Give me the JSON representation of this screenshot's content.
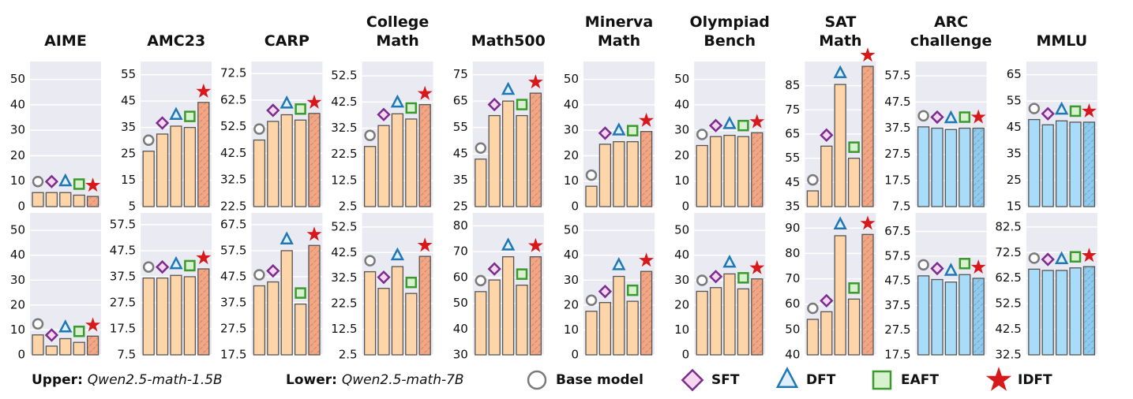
{
  "chart_data": [
    {
      "type": "bar",
      "title": "AIME",
      "values": [
        5.5,
        5.5,
        5.5,
        4.5,
        4
      ],
      "ylim": [
        0,
        57
      ],
      "yticks": [
        0,
        10,
        20,
        30,
        40,
        50
      ],
      "color": "#fdd5a8",
      "highlight_color": "#f4a582"
    },
    {
      "type": "bar",
      "title": "AMC23",
      "values": [
        26,
        32.5,
        35.5,
        35,
        44.5
      ],
      "ylim": [
        5,
        60
      ],
      "yticks": [
        5,
        15,
        25,
        35,
        45,
        55
      ],
      "color": "#fdd5a8",
      "highlight_color": "#f4a582"
    },
    {
      "type": "bar",
      "title": "CARP",
      "values": [
        47.5,
        54.5,
        57,
        55,
        57.5
      ],
      "ylim": [
        22.5,
        77
      ],
      "yticks": [
        22.5,
        32.5,
        42.5,
        52.5,
        62.5,
        72.5
      ],
      "color": "#fdd5a8",
      "highlight_color": "#f4a582"
    },
    {
      "type": "bar",
      "title": "College Math",
      "values": [
        25.5,
        33.5,
        38,
        36,
        41.5
      ],
      "ylim": [
        2.5,
        58
      ],
      "yticks": [
        2.5,
        12.5,
        22.5,
        32.5,
        42.5,
        52.5
      ],
      "color": "#fdd5a8",
      "highlight_color": "#f4a582"
    },
    {
      "type": "bar",
      "title": "Math500",
      "values": [
        43,
        59.5,
        65,
        59.5,
        68
      ],
      "ylim": [
        25,
        80
      ],
      "yticks": [
        25,
        35,
        45,
        55,
        65,
        75
      ],
      "color": "#fdd5a8",
      "highlight_color": "#f4a582"
    },
    {
      "type": "bar",
      "title": "Minerva Math",
      "values": [
        8,
        24.5,
        25.5,
        25.5,
        29.5
      ],
      "ylim": [
        0,
        57
      ],
      "yticks": [
        0,
        10,
        20,
        30,
        40,
        50
      ],
      "color": "#fdd5a8",
      "highlight_color": "#f4a582"
    },
    {
      "type": "bar",
      "title": "Olympiad Bench",
      "values": [
        24,
        27.5,
        28,
        27.5,
        29
      ],
      "ylim": [
        0,
        57
      ],
      "yticks": [
        0,
        10,
        20,
        30,
        40,
        50
      ],
      "color": "#fdd5a8",
      "highlight_color": "#f4a582"
    },
    {
      "type": "bar",
      "title": "SAT Math",
      "values": [
        41.5,
        60,
        85.5,
        55,
        93
      ],
      "ylim": [
        35,
        95
      ],
      "yticks": [
        35,
        45,
        55,
        65,
        75,
        85
      ],
      "color": "#fdd5a8",
      "highlight_color": "#f4a582"
    },
    {
      "type": "bar",
      "title": "ARC challenge",
      "values": [
        38,
        37.5,
        37,
        37.5,
        37.5
      ],
      "ylim": [
        7.5,
        63
      ],
      "yticks": [
        7.5,
        17.5,
        27.5,
        37.5,
        47.5,
        57.5
      ],
      "color": "#a8dcf8",
      "highlight_color": "#8ecbf0"
    },
    {
      "type": "bar",
      "title": "MMLU",
      "values": [
        48,
        46,
        47.5,
        47,
        47
      ],
      "ylim": [
        15,
        70
      ],
      "yticks": [
        15,
        25,
        35,
        45,
        55,
        65
      ],
      "color": "#a8dcf8",
      "highlight_color": "#8ecbf0"
    },
    {
      "type": "bar",
      "values": [
        8,
        3.5,
        6.5,
        5,
        7.5
      ],
      "ylim": [
        0,
        57
      ],
      "yticks": [
        0,
        10,
        20,
        30,
        40,
        50
      ],
      "color": "#fdd5a8",
      "highlight_color": "#f4a582"
    },
    {
      "type": "bar",
      "values": [
        37,
        37,
        38,
        37.5,
        40.5
      ],
      "ylim": [
        7.5,
        62
      ],
      "yticks": [
        7.5,
        17.5,
        27.5,
        37.5,
        47.5,
        57.5
      ],
      "color": "#fdd5a8",
      "highlight_color": "#f4a582"
    },
    {
      "type": "bar",
      "values": [
        44,
        45.5,
        57.5,
        37,
        59.5
      ],
      "ylim": [
        17.5,
        72
      ],
      "yticks": [
        17.5,
        27.5,
        37.5,
        47.5,
        57.5,
        67.5
      ],
      "color": "#fdd5a8",
      "highlight_color": "#f4a582"
    },
    {
      "type": "bar",
      "values": [
        35,
        28.5,
        37,
        26.5,
        41
      ],
      "ylim": [
        2.5,
        58
      ],
      "yticks": [
        2.5,
        12.5,
        22.5,
        32.5,
        42.5,
        52.5
      ],
      "color": "#fdd5a8",
      "highlight_color": "#f4a582"
    },
    {
      "type": "bar",
      "values": [
        54.5,
        59,
        68,
        57,
        68
      ],
      "ylim": [
        30,
        85
      ],
      "yticks": [
        30,
        40,
        50,
        60,
        70,
        80
      ],
      "color": "#fdd5a8",
      "highlight_color": "#f4a582"
    },
    {
      "type": "bar",
      "values": [
        17.5,
        21,
        31.5,
        21.5,
        33.5
      ],
      "ylim": [
        0,
        57
      ],
      "yticks": [
        0,
        10,
        20,
        30,
        40,
        50
      ],
      "color": "#fdd5a8",
      "highlight_color": "#f4a582"
    },
    {
      "type": "bar",
      "values": [
        25.5,
        27,
        32.5,
        26.5,
        30.5
      ],
      "ylim": [
        0,
        57
      ],
      "yticks": [
        0,
        10,
        20,
        30,
        40,
        50
      ],
      "color": "#fdd5a8",
      "highlight_color": "#f4a582"
    },
    {
      "type": "bar",
      "values": [
        54,
        57,
        87,
        62,
        87.5
      ],
      "ylim": [
        40,
        96
      ],
      "yticks": [
        40,
        50,
        60,
        70,
        80,
        90
      ],
      "color": "#fdd5a8",
      "highlight_color": "#f4a582"
    },
    {
      "type": "bar",
      "values": [
        49.5,
        48,
        47,
        50,
        48.5
      ],
      "ylim": [
        17.5,
        75
      ],
      "yticks": [
        17.5,
        27.5,
        37.5,
        47.5,
        57.5,
        67.5
      ],
      "color": "#a8dcf8",
      "highlight_color": "#8ecbf0"
    },
    {
      "type": "bar",
      "values": [
        66,
        65.5,
        65.5,
        66.5,
        67
      ],
      "ylim": [
        32.5,
        88
      ],
      "yticks": [
        32.5,
        42.5,
        52.5,
        62.5,
        72.5,
        82.5
      ],
      "color": "#a8dcf8",
      "highlight_color": "#8ecbf0"
    }
  ],
  "legend": {
    "upper_label": "Upper",
    "upper_model": "Qwen2.5-math-1.5B",
    "lower_label": "Lower",
    "lower_model": "Qwen2.5-math-7B",
    "methods": [
      {
        "name": "Base model",
        "marker": "circle",
        "color": "#7a7a7a",
        "fill": "#ffffff"
      },
      {
        "name": "SFT",
        "marker": "diamond",
        "color": "#7b2d8e",
        "fill": "#f7d6f0"
      },
      {
        "name": "DFT",
        "marker": "triangle",
        "color": "#1f78b4",
        "fill": "#dff0fa"
      },
      {
        "name": "EAFT",
        "marker": "square",
        "color": "#3a9a2e",
        "fill": "#d8f1cf"
      },
      {
        "name": "IDFT",
        "marker": "star",
        "color": "#d7191c",
        "fill": "#d7191c"
      }
    ]
  }
}
